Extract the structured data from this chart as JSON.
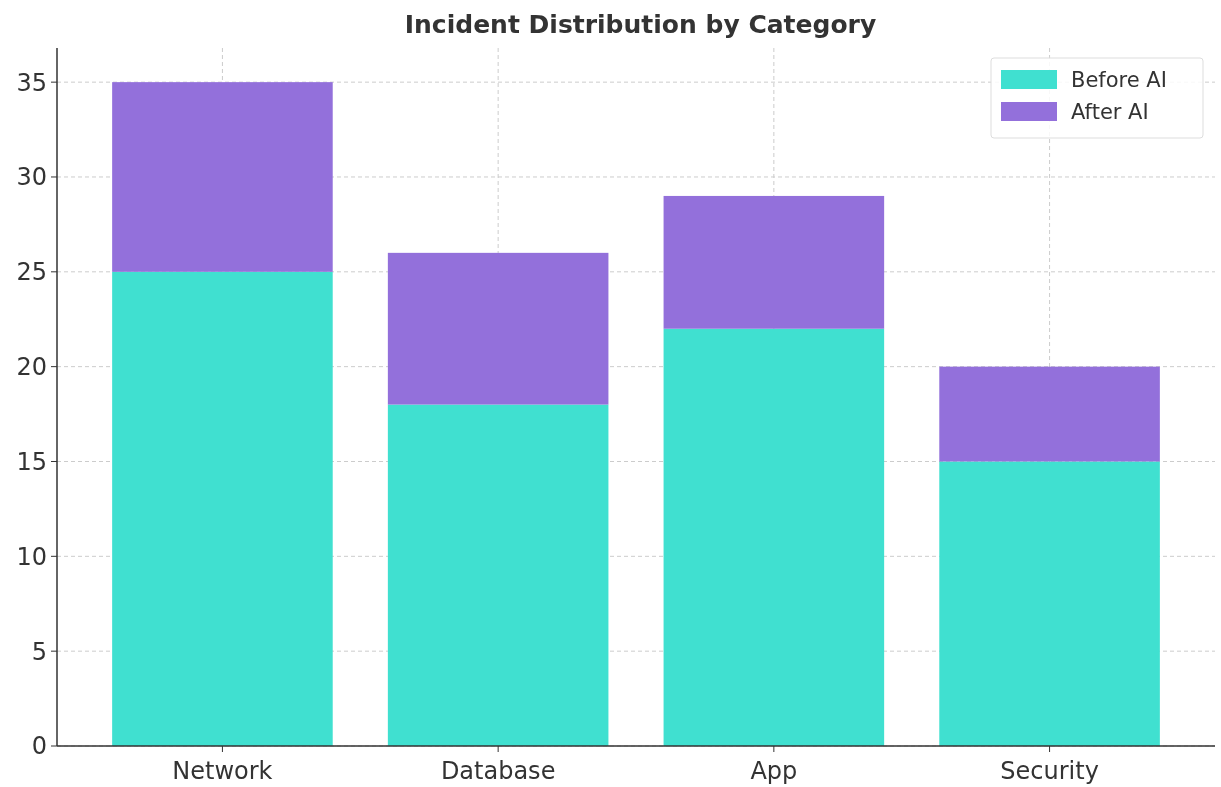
{
  "chart_data": {
    "type": "bar",
    "title": "Incident Distribution by Category",
    "categories": [
      "Network",
      "Database",
      "App",
      "Security"
    ],
    "stacked": true,
    "series": [
      {
        "name": "Before AI",
        "color": "#40e0d0",
        "values": [
          25,
          18,
          22,
          15
        ]
      },
      {
        "name": "After AI",
        "color": "#9370db",
        "values": [
          10,
          8,
          7,
          5
        ]
      }
    ],
    "ylim": [
      0,
      36.8
    ],
    "yticks": [
      0,
      5,
      10,
      15,
      20,
      25,
      30,
      35
    ],
    "grid": true,
    "legend": "top right"
  }
}
